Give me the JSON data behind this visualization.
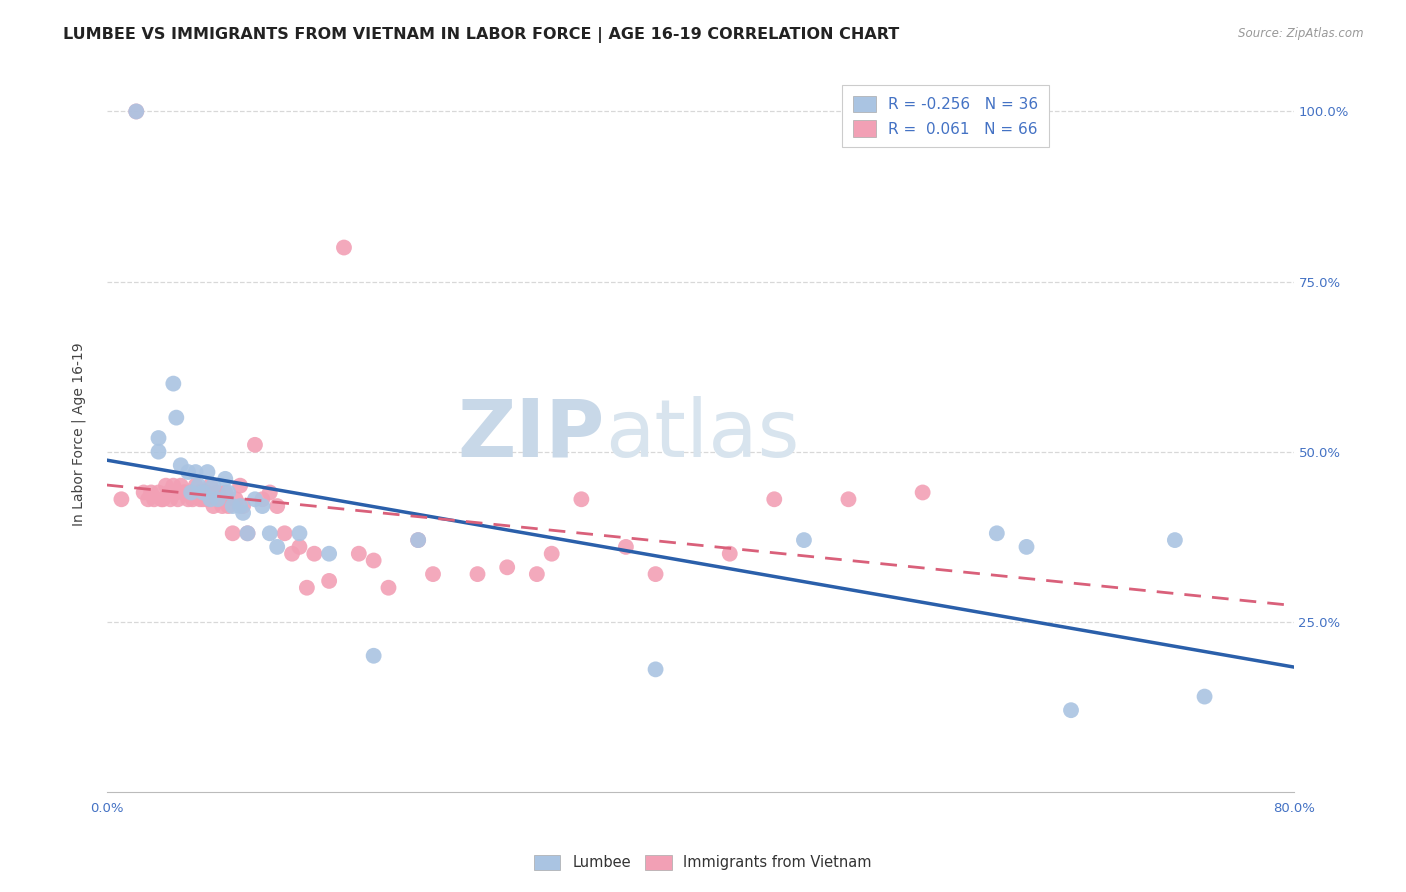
{
  "title": "LUMBEE VS IMMIGRANTS FROM VIETNAM IN LABOR FORCE | AGE 16-19 CORRELATION CHART",
  "source": "Source: ZipAtlas.com",
  "ylabel": "In Labor Force | Age 16-19",
  "xlim": [
    0.0,
    0.8
  ],
  "ylim": [
    0.0,
    1.05
  ],
  "legend_labels": [
    "Lumbee",
    "Immigrants from Vietnam"
  ],
  "r_lumbee": -0.256,
  "n_lumbee": 36,
  "r_vietnam": 0.061,
  "n_vietnam": 66,
  "lumbee_color": "#aac4e2",
  "vietnam_color": "#f2a0b5",
  "lumbee_line_color": "#2a5faa",
  "vietnam_line_color": "#d9607a",
  "lumbee_x": [
    0.02,
    0.035,
    0.035,
    0.045,
    0.047,
    0.05,
    0.055,
    0.057,
    0.06,
    0.062,
    0.065,
    0.068,
    0.07,
    0.072,
    0.075,
    0.08,
    0.082,
    0.085,
    0.09,
    0.092,
    0.095,
    0.1,
    0.105,
    0.11,
    0.115,
    0.13,
    0.15,
    0.18,
    0.21,
    0.37,
    0.47,
    0.6,
    0.62,
    0.65,
    0.72,
    0.74
  ],
  "lumbee_y": [
    1.0,
    0.52,
    0.5,
    0.6,
    0.55,
    0.48,
    0.47,
    0.44,
    0.47,
    0.45,
    0.44,
    0.47,
    0.43,
    0.45,
    0.43,
    0.46,
    0.44,
    0.42,
    0.42,
    0.41,
    0.38,
    0.43,
    0.42,
    0.38,
    0.36,
    0.38,
    0.35,
    0.2,
    0.37,
    0.18,
    0.37,
    0.38,
    0.36,
    0.12,
    0.37,
    0.14
  ],
  "vietnam_x": [
    0.01,
    0.02,
    0.025,
    0.028,
    0.03,
    0.032,
    0.035,
    0.037,
    0.038,
    0.04,
    0.042,
    0.043,
    0.045,
    0.047,
    0.048,
    0.05,
    0.052,
    0.053,
    0.055,
    0.057,
    0.058,
    0.06,
    0.062,
    0.063,
    0.065,
    0.067,
    0.068,
    0.07,
    0.072,
    0.075,
    0.077,
    0.078,
    0.08,
    0.082,
    0.085,
    0.087,
    0.09,
    0.092,
    0.095,
    0.1,
    0.105,
    0.11,
    0.115,
    0.12,
    0.125,
    0.13,
    0.135,
    0.14,
    0.15,
    0.16,
    0.17,
    0.18,
    0.19,
    0.21,
    0.22,
    0.25,
    0.27,
    0.29,
    0.3,
    0.32,
    0.35,
    0.37,
    0.42,
    0.45,
    0.5,
    0.55
  ],
  "vietnam_y": [
    0.43,
    1.0,
    0.44,
    0.43,
    0.44,
    0.43,
    0.44,
    0.43,
    0.43,
    0.45,
    0.44,
    0.43,
    0.45,
    0.44,
    0.43,
    0.45,
    0.44,
    0.44,
    0.43,
    0.44,
    0.43,
    0.45,
    0.44,
    0.43,
    0.43,
    0.44,
    0.43,
    0.45,
    0.42,
    0.44,
    0.43,
    0.42,
    0.44,
    0.42,
    0.38,
    0.43,
    0.45,
    0.42,
    0.38,
    0.51,
    0.43,
    0.44,
    0.42,
    0.38,
    0.35,
    0.36,
    0.3,
    0.35,
    0.31,
    0.8,
    0.35,
    0.34,
    0.3,
    0.37,
    0.32,
    0.32,
    0.33,
    0.32,
    0.35,
    0.43,
    0.36,
    0.32,
    0.35,
    0.43,
    0.43,
    0.44
  ],
  "background_color": "#ffffff",
  "grid_color": "#d8d8d8",
  "title_fontsize": 11.5,
  "label_fontsize": 10,
  "tick_fontsize": 9.5,
  "watermark_zip_color": "#c8d8e8",
  "watermark_atlas_color": "#d8e4ee"
}
